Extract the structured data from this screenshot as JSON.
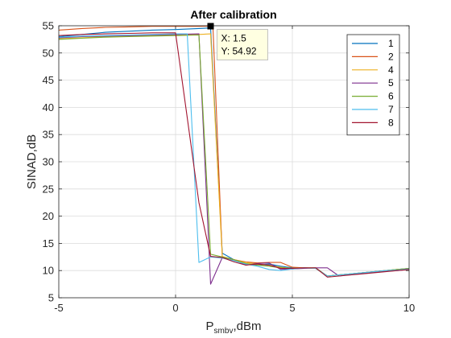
{
  "chart_data": {
    "type": "line",
    "title": "After calibration",
    "xlabel": {
      "main": "P",
      "sub": "smbv",
      "suffix": ",dBm"
    },
    "ylabel": "SINAD,dB",
    "xlim": [
      -5,
      10
    ],
    "ylim": [
      5,
      55
    ],
    "xticks": [
      "-5",
      "0",
      "5",
      "10"
    ],
    "yticks": [
      "5",
      "10",
      "15",
      "20",
      "25",
      "30",
      "35",
      "40",
      "45",
      "50",
      "55"
    ],
    "grid": true,
    "legend_position": "top-right",
    "datatip": {
      "x_label": "X: 1.5",
      "y_label": "Y: 54.92",
      "x": 1.5,
      "y": 54.92
    },
    "series": [
      {
        "name": "1",
        "color": "#0072bd",
        "x": [
          -5,
          -4,
          -3,
          -2,
          -1,
          0,
          1,
          1.5,
          2,
          2.5,
          3,
          3.5,
          4,
          4.5,
          5,
          5.5,
          6,
          6.5,
          7,
          7.5,
          8,
          8.5,
          9,
          9.5,
          10
        ],
        "y": [
          53.0,
          53.4,
          53.8,
          54.0,
          54.2,
          54.3,
          54.5,
          54.6,
          13.2,
          12.0,
          11.2,
          11.0,
          11.2,
          10.8,
          10.5,
          10.5,
          10.4,
          9.0,
          9.2,
          9.4,
          9.6,
          9.8,
          10.0,
          10.2,
          10.4
        ]
      },
      {
        "name": "2",
        "color": "#d95319",
        "x": [
          -5,
          -4,
          -3,
          -2,
          -1,
          0,
          1,
          1.5,
          1.6,
          2,
          2.5,
          3,
          3.5,
          4,
          4.5,
          5,
          5.5,
          6,
          6.5,
          7,
          7.5,
          8,
          8.5,
          9,
          9.5,
          10
        ],
        "y": [
          54.2,
          54.5,
          54.7,
          54.8,
          54.9,
          54.9,
          54.9,
          54.92,
          54.92,
          12.5,
          12.0,
          11.6,
          11.4,
          11.5,
          11.5,
          10.6,
          10.5,
          10.4,
          9.0,
          9.2,
          9.4,
          9.6,
          9.8,
          10.0,
          10.2,
          10.4
        ]
      },
      {
        "name": "4",
        "color": "#edb120",
        "x": [
          -5,
          -4,
          -3,
          -2,
          -1,
          0,
          1,
          1.5,
          2,
          2.5,
          3,
          3.5,
          4,
          4.5,
          5,
          5.5,
          6,
          6.5,
          7,
          7.5,
          8,
          8.5,
          9,
          9.5,
          10
        ],
        "y": [
          52.6,
          52.8,
          53.0,
          53.1,
          53.2,
          53.3,
          53.4,
          53.5,
          12.6,
          12.0,
          11.5,
          11.2,
          11.0,
          10.6,
          10.4,
          10.5,
          10.4,
          9.0,
          9.2,
          9.4,
          9.6,
          9.8,
          10.0,
          10.2,
          10.3
        ]
      },
      {
        "name": "5",
        "color": "#7e2f8e",
        "x": [
          -5,
          -4,
          -3,
          -2,
          -1,
          0,
          1,
          1.5,
          2,
          2.5,
          3,
          3.5,
          4,
          4.5,
          5,
          5.5,
          6,
          6.5,
          7,
          7.5,
          8,
          8.5,
          9,
          9.5,
          10
        ],
        "y": [
          52.8,
          53.0,
          53.1,
          53.2,
          53.3,
          53.4,
          53.5,
          7.5,
          12.4,
          12.0,
          11.0,
          11.3,
          11.4,
          10.2,
          10.3,
          10.4,
          10.5,
          10.5,
          9.0,
          9.3,
          9.5,
          9.7,
          9.9,
          10.0,
          10.2
        ]
      },
      {
        "name": "6",
        "color": "#77ac30",
        "x": [
          -5,
          -4,
          -3,
          -2,
          -1,
          0,
          1,
          1.5,
          2,
          2.5,
          3,
          3.5,
          4,
          4.5,
          5,
          5.5,
          6,
          6.5,
          7,
          7.5,
          8,
          8.5,
          9,
          9.5,
          10
        ],
        "y": [
          52.5,
          52.7,
          52.9,
          53.0,
          53.1,
          53.2,
          53.3,
          13.0,
          12.5,
          12.0,
          11.3,
          11.0,
          10.8,
          10.5,
          10.4,
          10.5,
          10.5,
          9.0,
          9.2,
          9.4,
          9.6,
          9.8,
          10.0,
          10.2,
          10.4
        ]
      },
      {
        "name": "7",
        "color": "#4dbeee",
        "x": [
          -5,
          -4,
          -3,
          -2,
          -1,
          0,
          0.5,
          1,
          1.5,
          2,
          2.5,
          3,
          3.5,
          4,
          4.5,
          5,
          5.5,
          6,
          6.5,
          7,
          7.5,
          8,
          8.5,
          9,
          9.5,
          10
        ],
        "y": [
          52.9,
          53.1,
          53.2,
          53.3,
          53.4,
          53.5,
          53.5,
          11.5,
          12.5,
          12.3,
          11.8,
          11.2,
          10.8,
          10.2,
          10.0,
          10.3,
          10.5,
          10.4,
          9.0,
          9.2,
          9.4,
          9.6,
          9.8,
          10.0,
          10.1,
          10.3
        ]
      },
      {
        "name": "8",
        "color": "#a2142f",
        "x": [
          -5,
          -4,
          -3,
          -2,
          -1,
          0,
          1,
          1.5,
          2,
          2.5,
          3,
          3.5,
          4,
          4.5,
          5,
          5.5,
          6,
          6.5,
          7,
          7.5,
          8,
          8.5,
          9,
          9.5,
          10
        ],
        "y": [
          53.2,
          53.4,
          53.5,
          53.6,
          53.7,
          53.7,
          22.5,
          12.6,
          12.4,
          11.6,
          11.0,
          11.2,
          11.0,
          10.4,
          10.4,
          10.5,
          10.5,
          8.8,
          9.0,
          9.2,
          9.4,
          9.6,
          9.8,
          10.0,
          10.2
        ]
      }
    ]
  }
}
